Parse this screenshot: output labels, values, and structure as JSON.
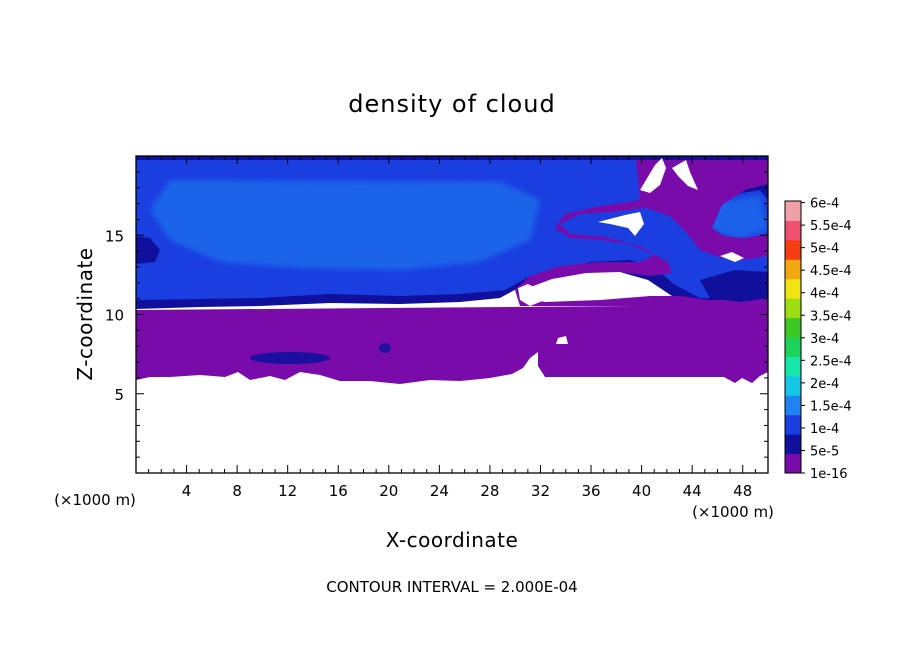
{
  "chart_data": {
    "type": "heatmap",
    "title": "density of cloud",
    "xlabel": "X-coordinate",
    "ylabel": "Z-coordinate",
    "x_unit_label": "(×1000 m)",
    "z_unit_label": "(×1000 m)",
    "footer": "CONTOUR INTERVAL = 2.000E-04",
    "xlim": [
      0,
      50
    ],
    "ylim": [
      0,
      20
    ],
    "x_ticks": [
      4,
      8,
      12,
      16,
      20,
      24,
      28,
      32,
      36,
      40,
      44,
      48
    ],
    "y_ticks": [
      5,
      10,
      15
    ],
    "colorbar": {
      "levels": [
        "1e-16",
        "5e-5",
        "1e-4",
        "1.5e-4",
        "2e-4",
        "2.5e-4",
        "3e-4",
        "3.5e-4",
        "4e-4",
        "4.5e-4",
        "5e-4",
        "5.5e-4",
        "6e-4"
      ],
      "colors": [
        "#7a0bab",
        "#10109c",
        "#1b3ee0",
        "#1f84f2",
        "#14c7e6",
        "#16e6aa",
        "#1dd35a",
        "#3cc825",
        "#9fdd13",
        "#f2e313",
        "#f5a712",
        "#f53d12",
        "#f25070",
        "#f2a0a8"
      ]
    },
    "regions": {
      "cloud_base_km": 6.2,
      "cloud_top_km": 19.8,
      "upper_layer_km": [
        10.5,
        19.8
      ],
      "upper_layer_value": "5e-5 to 1.5e-4",
      "lower_layer_km": [
        6.2,
        10.5
      ],
      "lower_layer_value": "1e-16"
    }
  }
}
